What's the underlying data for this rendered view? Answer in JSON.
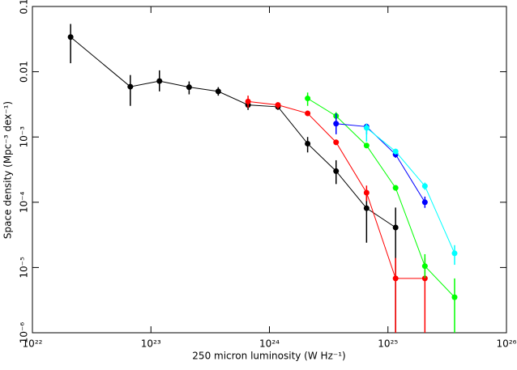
{
  "chart_data": {
    "type": "scatter",
    "xlabel": "250 micron luminosity (W Hz⁻¹)",
    "ylabel": "Space density (Mpc⁻³ dex⁻¹)",
    "xscale": "log",
    "yscale": "log",
    "xlim": [
      1e+22,
      1e+26
    ],
    "ylim": [
      1e-06,
      0.1
    ],
    "xticks": [
      {
        "value": 1e+22,
        "label": "10²²"
      },
      {
        "value": 1e+23,
        "label": "10²³"
      },
      {
        "value": 1e+24,
        "label": "10²⁴"
      },
      {
        "value": 1e+25,
        "label": "10²⁵"
      },
      {
        "value": 1e+26,
        "label": "10²⁶"
      }
    ],
    "yticks": [
      {
        "value": 1e-06,
        "label": "10⁻⁶"
      },
      {
        "value": 1e-05,
        "label": "10⁻⁵"
      },
      {
        "value": 0.0001,
        "label": "10⁻⁴"
      },
      {
        "value": 0.001,
        "label": "10⁻³"
      },
      0.01,
      0.1
    ],
    "series": [
      {
        "color": "#000000",
        "x": [
          2.1e+22,
          6.7e+22,
          1.18e+23,
          2.1e+23,
          3.7e+23,
          6.6e+23,
          1.18e+24,
          2.1e+24,
          3.65e+24,
          6.6e+24,
          1.16e+25
        ],
        "values": [
          0.034,
          0.0059,
          0.0072,
          0.0058,
          0.005,
          0.0031,
          0.0029,
          0.00079,
          0.0003,
          8.1e-05,
          4.1e-05
        ],
        "lower": [
          0.0135,
          0.003,
          0.005,
          0.0045,
          0.0043,
          0.0026,
          0.0026,
          0.00058,
          0.00019,
          2.4e-05,
          1e-06
        ],
        "upper": [
          0.054,
          0.0089,
          0.0105,
          0.0071,
          0.0058,
          0.0037,
          0.0033,
          0.001,
          0.00044,
          0.00013,
          8.3e-05
        ]
      },
      {
        "color": "#ff0000",
        "x": [
          6.6e+23,
          1.18e+24,
          2.1e+24,
          3.65e+24,
          6.6e+24,
          1.16e+25,
          2.05e+25
        ],
        "values": [
          0.0035,
          0.0031,
          0.0023,
          0.00083,
          0.00014,
          6.8e-06,
          6.8e-06
        ],
        "lower": [
          0.0028,
          0.0027,
          0.0021,
          0.00075,
          0.000104,
          1e-06,
          1e-06
        ],
        "upper": [
          0.0043,
          0.0034,
          0.0025,
          0.00091,
          0.00018,
          1.4e-05,
          1.4e-05
        ]
      },
      {
        "color": "#00ff00",
        "x": [
          2.1e+24,
          3.65e+24,
          6.6e+24,
          1.16e+25,
          2.05e+25,
          3.65e+25
        ],
        "values": [
          0.0039,
          0.0021,
          0.00074,
          0.000166,
          1.05e-05,
          3.5e-06
        ],
        "lower": [
          0.003,
          0.0018,
          0.00068,
          0.00015,
          6.9e-06,
          1e-06
        ],
        "upper": [
          0.0048,
          0.0024,
          0.0008,
          0.00018,
          1.6e-05,
          6.8e-06
        ]
      },
      {
        "color": "#0000ff",
        "x": [
          3.65e+24,
          6.6e+24,
          1.16e+25,
          2.05e+25
        ],
        "values": [
          0.0016,
          0.00144,
          0.00054,
          0.0001
        ],
        "lower": [
          0.0011,
          0.0011,
          0.00048,
          8.2e-05
        ],
        "upper": [
          0.0023,
          0.0016,
          0.0006,
          0.000122
        ]
      },
      {
        "color": "#00ffff",
        "x": [
          6.6e+24,
          1.16e+25,
          2.05e+25,
          3.65e+25
        ],
        "values": [
          0.00138,
          0.0006,
          0.000177,
          1.65e-05
        ],
        "lower": [
          0.00085,
          0.00054,
          0.000155,
          1.1e-05
        ],
        "upper": [
          0.0016,
          0.00066,
          0.0002,
          2.2e-05
        ]
      }
    ]
  }
}
